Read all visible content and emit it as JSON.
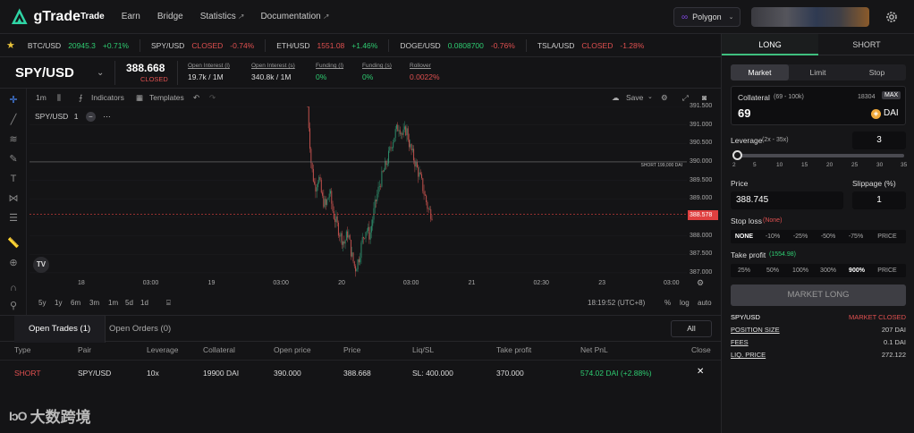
{
  "app": {
    "name": "gTrade"
  },
  "nav": {
    "items": [
      {
        "label": "Trade"
      },
      {
        "label": "Earn"
      },
      {
        "label": "Bridge"
      },
      {
        "label": "Statistics"
      },
      {
        "label": "Documentation"
      }
    ]
  },
  "network": {
    "label": "Polygon"
  },
  "tickers": [
    {
      "pair": "BTC/USD",
      "price": "20945.3",
      "change": "+0.71%"
    },
    {
      "pair": "SPY/USD",
      "status": "CLOSED",
      "change": "-0.74%"
    },
    {
      "pair": "ETH/USD",
      "price": "1551.08",
      "change": "+1.46%"
    },
    {
      "pair": "DOGE/USD",
      "price": "0.0808700",
      "change": "-0.76%"
    },
    {
      "pair": "TSLA/USD",
      "status": "CLOSED",
      "change": "-1.28%"
    }
  ],
  "pair": {
    "name": "SPY/USD",
    "price": "388.668",
    "status": "CLOSED",
    "stats": [
      {
        "label": "Open Interest (l)",
        "value": "19.7k / 1M"
      },
      {
        "label": "Open Interest (s)",
        "value": "340.8k / 1M"
      },
      {
        "label": "Funding (l)",
        "value": "0%"
      },
      {
        "label": "Funding (s)",
        "value": "0%"
      },
      {
        "label": "Rollover",
        "value": "0.0022%"
      }
    ]
  },
  "chart_toolbar": {
    "interval": "1m",
    "indicators": "Indicators",
    "templates": "Templates",
    "save": "Save"
  },
  "chart_legend": {
    "symbol": "SPY/USD",
    "interval": "1"
  },
  "chart_bottom": {
    "ranges": [
      "5y",
      "1y",
      "6m",
      "3m",
      "1m",
      "5d",
      "1d"
    ],
    "time": "18:19:52 (UTC+8)",
    "pct": "%",
    "log": "log",
    "auto": "auto"
  },
  "chart_data": {
    "type": "candlestick",
    "ylim": [
      386.9,
      391.5
    ],
    "y_ticks": [
      "391.500",
      "391.000",
      "390.500",
      "390.000",
      "389.500",
      "389.000",
      "388.500",
      "388.000",
      "387.500",
      "387.000"
    ],
    "x_ticks": [
      "18",
      "03:00",
      "19",
      "03:00",
      "20",
      "03:00",
      "21",
      "02:30",
      "23",
      "03:00"
    ],
    "current_price": "388.578",
    "short_line": {
      "label": "SHORT 199,000 DAI",
      "value": 390.0
    },
    "close_path": [
      391.5,
      389.9,
      389.3,
      389.6,
      389.0,
      388.8,
      389.2,
      388.6,
      388.3,
      388.0,
      387.8,
      388.1,
      387.5,
      387.1,
      387.4,
      387.9,
      388.2,
      388.0,
      388.6,
      389.1,
      389.5,
      389.8,
      390.1,
      390.5,
      390.8,
      391.0,
      390.7,
      390.9,
      390.4,
      390.1,
      389.8,
      389.5,
      389.1,
      388.7,
      388.6
    ]
  },
  "trades_tabs": [
    {
      "label": "Open Trades (1)"
    },
    {
      "label": "Open Orders (0)"
    }
  ],
  "trades_filter": "All",
  "trades_columns": [
    "Type",
    "Pair",
    "Leverage",
    "Collateral",
    "Open price",
    "Price",
    "Liq/SL",
    "Take profit",
    "Net PnL",
    "Close"
  ],
  "trades_rows": [
    {
      "type": "SHORT",
      "pair": "SPY/USD",
      "leverage": "10x",
      "collateral": "19900 DAI",
      "open_price": "390.000",
      "price": "388.668",
      "liq_sl": "SL: 400.000",
      "take_profit": "370.000",
      "net_pnl": "574.02 DAI (+2.88%)",
      "close": "✕"
    }
  ],
  "watermark": "大数跨境",
  "order_panel": {
    "sides": [
      "LONG",
      "SHORT"
    ],
    "types": [
      "Market",
      "Limit",
      "Stop"
    ],
    "collateral": {
      "label": "Collateral",
      "range": "(69 - 100k)",
      "value": "69",
      "balance": "18304",
      "max": "MAX",
      "token": "DAI"
    },
    "leverage": {
      "label": "Leverage",
      "range": "(2x - 35x)",
      "value": "3",
      "ticks": [
        "2",
        "5",
        "10",
        "15",
        "20",
        "25",
        "30",
        "35"
      ]
    },
    "price": {
      "label": "Price",
      "value": "388.745"
    },
    "slippage": {
      "label": "Slippage (%)",
      "value": "1"
    },
    "stop_loss": {
      "label": "Stop loss",
      "current": "(None)",
      "options": [
        "NONE",
        "-10%",
        "-25%",
        "-50%",
        "-75%",
        "PRICE"
      ]
    },
    "take_profit": {
      "label": "Take profit",
      "current": "(1554.98)",
      "options": [
        "25%",
        "50%",
        "100%",
        "300%",
        "900%",
        "PRICE"
      ]
    },
    "submit": "MARKET LONG",
    "info": {
      "pair": "SPY/USD",
      "status": "MARKET CLOSED",
      "rows": [
        {
          "k": "POSITION SIZE",
          "v": "207 DAI"
        },
        {
          "k": "FEES",
          "v": "0.1 DAI"
        },
        {
          "k": "LIQ. PRICE",
          "v": "272.122"
        }
      ]
    }
  }
}
